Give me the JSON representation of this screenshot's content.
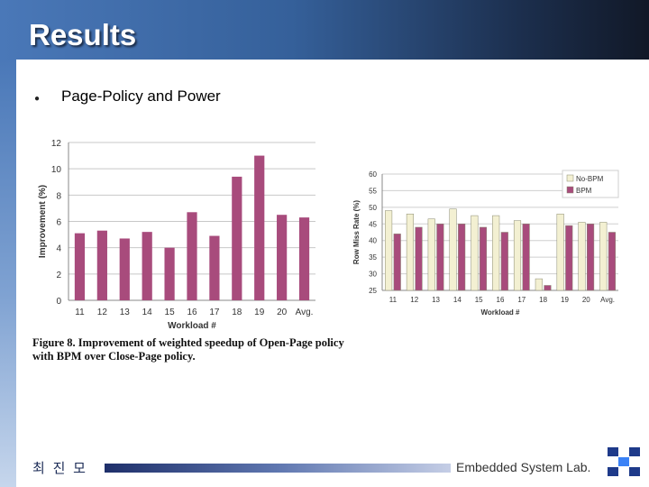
{
  "slide": {
    "title": "Results",
    "bullet_text": "Page-Policy and Power",
    "caption": "Figure 8. Improvement of weighted speedup of Open-Page policy with BPM over Close-Page policy.",
    "author": "최 진 모",
    "lab": "Embedded System Lab.",
    "colors": {
      "bar": "#a84b7c",
      "bpm": "#a84b7c",
      "nobpm": "#f3f0d2",
      "title_bar": "#35609a"
    }
  },
  "chart_data": [
    {
      "type": "bar",
      "title": "",
      "xlabel": "Workload #",
      "ylabel": "Improvement (%)",
      "categories": [
        "11",
        "12",
        "13",
        "14",
        "15",
        "16",
        "17",
        "18",
        "19",
        "20",
        "Avg."
      ],
      "values": [
        5.1,
        5.3,
        4.7,
        5.2,
        4.0,
        6.7,
        4.9,
        9.4,
        11.0,
        6.5,
        6.3
      ],
      "ylim": [
        0,
        12
      ],
      "yticks": [
        "0",
        "2",
        "4",
        "6",
        "8",
        "10",
        "12"
      ],
      "grid": true
    },
    {
      "type": "bar",
      "title": "",
      "xlabel": "Workload #",
      "ylabel": "Row Miss Rate (%)",
      "categories": [
        "11",
        "12",
        "13",
        "14",
        "15",
        "16",
        "17",
        "18",
        "19",
        "20",
        "Avg."
      ],
      "series": [
        {
          "name": "No-BPM",
          "values": [
            49,
            48,
            46.5,
            49.5,
            47.5,
            47.5,
            46,
            28.5,
            48,
            45.5,
            45.5
          ]
        },
        {
          "name": "BPM",
          "values": [
            42,
            44,
            45,
            45,
            44,
            42.5,
            45,
            26.5,
            44.5,
            45,
            42.5
          ]
        }
      ],
      "ylim": [
        25,
        60
      ],
      "yticks": [
        "25",
        "30",
        "35",
        "40",
        "45",
        "50",
        "55",
        "60"
      ],
      "legend": "top-right",
      "grid": true
    }
  ]
}
